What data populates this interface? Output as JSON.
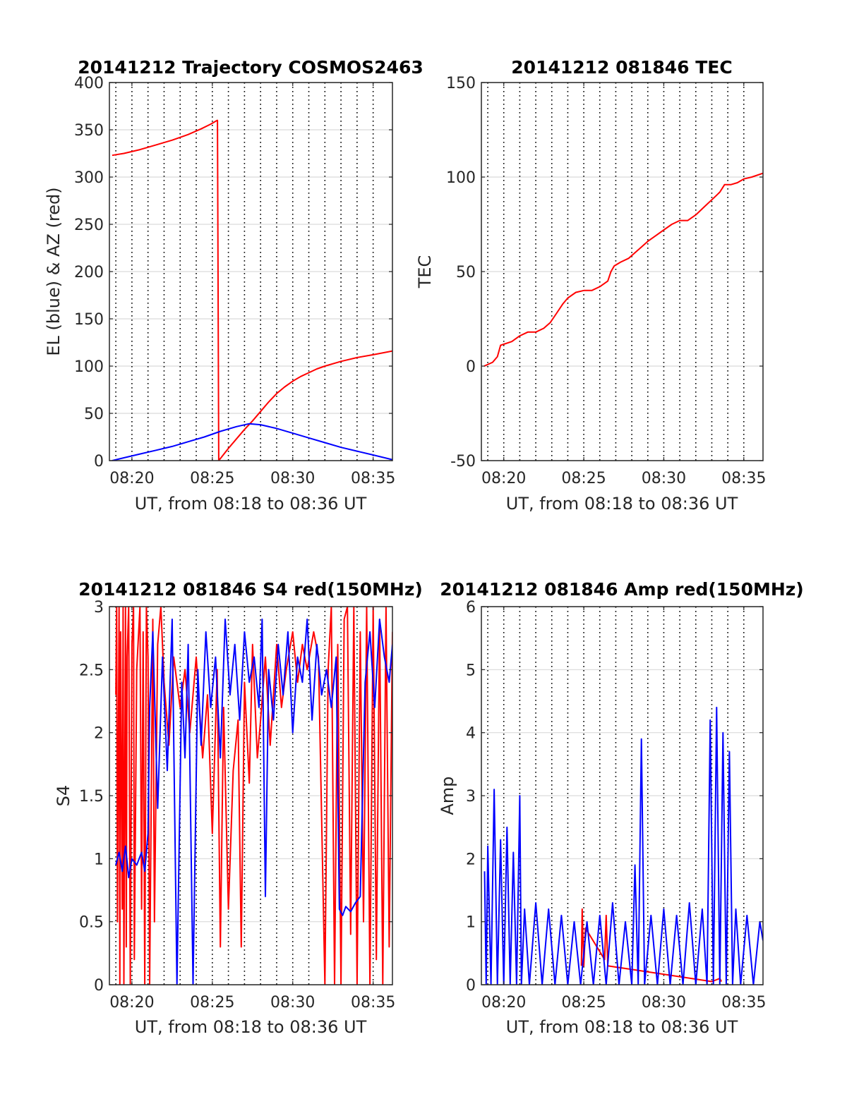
{
  "figure": {
    "line_colors": {
      "red": "#ff0000",
      "blue": "#0000ff"
    },
    "grid_color": "#d9d9d9"
  },
  "chart_data": [
    {
      "type": "line",
      "title": "20141212 Trajectory COSMOS2463",
      "xlabel": "UT, from 08:18 to 08:36 UT",
      "ylabel": "EL (blue) & AZ (red)",
      "xlim": [
        18.6,
        36.2
      ],
      "ylim": [
        0,
        400
      ],
      "yticks": [
        0,
        50,
        100,
        150,
        200,
        250,
        300,
        350,
        400
      ],
      "xticks": [
        20,
        25,
        30,
        35
      ],
      "xticklabels": [
        "08:20",
        "08:25",
        "08:30",
        "08:35"
      ],
      "vgrid_minutes": [
        19,
        20,
        21,
        22,
        23,
        24,
        25,
        26,
        27,
        28,
        29,
        30,
        31,
        32,
        33,
        34,
        35
      ],
      "grid": true,
      "series": [
        {
          "color": "#ff0000",
          "x": [
            18.77,
            19.5,
            20.5,
            21.5,
            22.5,
            23.5,
            24.3,
            24.9,
            25.3,
            25.32,
            25.4,
            26.0,
            26.5,
            27.0,
            27.5,
            28.0,
            28.5,
            29.0,
            29.5,
            30.0,
            30.5,
            31.0,
            31.5,
            32.0,
            33.0,
            34.0,
            35.0,
            36.2
          ],
          "y": [
            323,
            325,
            329,
            334,
            339,
            345,
            351,
            356,
            360,
            360,
            0,
            13,
            23,
            33,
            42,
            52,
            62,
            71,
            78,
            84,
            89,
            93,
            97,
            100,
            105,
            109,
            112,
            116
          ]
        },
        {
          "color": "#0000ff",
          "x": [
            18.77,
            19.5,
            20.5,
            21.5,
            22.5,
            23.5,
            24.5,
            25.5,
            26.5,
            27.3,
            28.0,
            29.0,
            30.0,
            31.0,
            32.0,
            33.0,
            34.0,
            35.0,
            36.2
          ],
          "y": [
            0,
            3,
            7,
            11,
            15,
            20,
            25,
            31,
            36,
            39,
            38,
            34,
            29,
            24,
            19,
            14,
            10,
            6,
            1
          ]
        }
      ]
    },
    {
      "type": "line",
      "title": "20141212 081846 TEC",
      "xlabel": "UT, from 08:18 to 08:36 UT",
      "ylabel": "TEC",
      "xlim": [
        18.6,
        36.2
      ],
      "ylim": [
        -50,
        150
      ],
      "yticks": [
        -50,
        0,
        50,
        100,
        150
      ],
      "xticks": [
        20,
        25,
        30,
        35
      ],
      "xticklabels": [
        "08:20",
        "08:25",
        "08:30",
        "08:35"
      ],
      "vgrid_minutes": [
        19,
        20,
        21,
        22,
        23,
        24,
        25,
        26,
        27,
        28,
        29,
        30,
        31,
        32,
        33,
        34,
        35
      ],
      "grid": true,
      "series": [
        {
          "color": "#ff0000",
          "x": [
            18.77,
            19.3,
            19.6,
            19.8,
            20.5,
            21.0,
            21.5,
            22.0,
            22.5,
            22.9,
            23.3,
            23.7,
            24.0,
            24.5,
            25.0,
            25.5,
            26.0,
            26.5,
            26.7,
            26.9,
            27.3,
            27.8,
            28.2,
            28.6,
            29.0,
            29.5,
            30.0,
            30.5,
            31.0,
            31.5,
            32.0,
            32.5,
            33.0,
            33.5,
            33.8,
            34.2,
            34.6,
            35.0,
            35.5,
            36.2
          ],
          "y": [
            0,
            2,
            5,
            11,
            13,
            16,
            18,
            18,
            20,
            23,
            28,
            33,
            36,
            39,
            40,
            40,
            42,
            45,
            50,
            53,
            55,
            57,
            60,
            63,
            66,
            69,
            72,
            75,
            77,
            77,
            80,
            84,
            88,
            92,
            96,
            96,
            97,
            99,
            100,
            102
          ]
        }
      ]
    },
    {
      "type": "line",
      "title": "20141212 081846 S4 red(150MHz)",
      "xlabel": "UT, from 08:18 to 08:36 UT",
      "ylabel": "S4",
      "xlim": [
        18.6,
        36.2
      ],
      "ylim": [
        0,
        3
      ],
      "yticks": [
        0,
        0.5,
        1,
        1.5,
        2,
        2.5,
        3
      ],
      "xticks": [
        20,
        25,
        30,
        35
      ],
      "xticklabels": [
        "08:20",
        "08:25",
        "08:30",
        "08:35"
      ],
      "vgrid_minutes": [
        19,
        20,
        21,
        22,
        23,
        24,
        25,
        26,
        27,
        28,
        29,
        30,
        31,
        32,
        33,
        34,
        35
      ],
      "grid": true,
      "series": [
        {
          "color": "#ff0000",
          "x": [
            19.0,
            19.05,
            19.1,
            19.2,
            19.25,
            19.3,
            19.4,
            19.45,
            19.5,
            19.6,
            19.65,
            19.7,
            19.8,
            19.9,
            20.0,
            20.1,
            20.15,
            20.3,
            20.5,
            20.6,
            20.7,
            20.8,
            20.9,
            21.0,
            21.1,
            21.3,
            21.4,
            21.6,
            21.8,
            22.0,
            22.3,
            22.6,
            23.0,
            23.3,
            23.6,
            24.0,
            24.4,
            24.7,
            25.0,
            25.3,
            25.5,
            25.7,
            26.0,
            26.3,
            26.6,
            26.8,
            27.0,
            27.3,
            27.5,
            27.8,
            28.0,
            28.3,
            28.6,
            28.8,
            29.0,
            29.3,
            29.6,
            30.0,
            30.3,
            30.6,
            30.9,
            31.3,
            31.6,
            32.0,
            32.2,
            32.4,
            32.6,
            32.8,
            33.0,
            33.2,
            33.4,
            33.6,
            33.8,
            34.0,
            34.2,
            34.4,
            34.6,
            34.8,
            35.0,
            35.2,
            35.4,
            35.6,
            35.8,
            36.0,
            36.2
          ],
          "y": [
            2.3,
            3.0,
            0.5,
            3.0,
            0,
            2.8,
            0.6,
            3.0,
            0,
            3.0,
            0.3,
            2.6,
            3.0,
            0,
            2.7,
            3.0,
            0.2,
            2.5,
            3.0,
            0.6,
            2.8,
            0,
            3.0,
            2.6,
            0,
            2.9,
            0.5,
            2.7,
            3.0,
            2.4,
            1.9,
            2.6,
            2.2,
            2.5,
            2.0,
            2.6,
            1.8,
            2.3,
            1.2,
            2.5,
            0.3,
            2.2,
            0.6,
            1.7,
            2.1,
            0.3,
            2.4,
            1.6,
            2.7,
            1.8,
            2.1,
            2.6,
            1.9,
            2.3,
            2.7,
            2.2,
            2.5,
            2.8,
            2.4,
            2.7,
            2.5,
            2.8,
            2.6,
            0,
            2.5,
            3.0,
            0,
            2.7,
            0,
            2.9,
            3.0,
            0.4,
            3.0,
            0,
            2.8,
            0.5,
            3.0,
            0,
            3.0,
            0.2,
            2.9,
            0,
            3.0,
            0.3,
            2.8
          ]
        },
        {
          "color": "#0000ff",
          "x": [
            19.0,
            19.2,
            19.4,
            19.6,
            19.8,
            20.0,
            20.3,
            20.6,
            20.8,
            21.0,
            21.1,
            21.3,
            21.6,
            21.9,
            22.2,
            22.5,
            22.8,
            23.1,
            23.3,
            23.5,
            23.8,
            24.1,
            24.3,
            24.6,
            24.9,
            25.2,
            25.5,
            25.8,
            26.1,
            26.4,
            26.7,
            27.0,
            27.3,
            27.6,
            27.9,
            28.1,
            28.3,
            28.5,
            28.8,
            29.1,
            29.4,
            29.7,
            30.0,
            30.3,
            30.6,
            30.9,
            31.2,
            31.5,
            31.8,
            32.1,
            32.4,
            32.7,
            32.9,
            33.1,
            33.3,
            33.6,
            33.9,
            34.2,
            34.5,
            34.8,
            35.1,
            35.4,
            35.7,
            36.0,
            36.2
          ],
          "y": [
            0.95,
            1.05,
            0.9,
            1.1,
            0.85,
            1.0,
            0.95,
            1.05,
            0.9,
            1.2,
            2.2,
            2.8,
            1.4,
            2.6,
            1.7,
            2.9,
            0,
            2.4,
            1.8,
            2.7,
            0,
            2.5,
            1.9,
            2.8,
            2.2,
            2.6,
            1.8,
            2.9,
            2.3,
            2.7,
            2.1,
            2.8,
            2.4,
            2.6,
            2.2,
            2.9,
            0.7,
            2.5,
            2.1,
            2.7,
            2.3,
            2.8,
            2.0,
            2.6,
            2.4,
            2.9,
            2.1,
            2.7,
            2.3,
            2.5,
            2.2,
            2.6,
            0.6,
            0.55,
            0.62,
            0.58,
            0.65,
            0.7,
            2.4,
            2.8,
            2.2,
            2.9,
            2.6,
            2.4,
            2.7
          ]
        }
      ]
    },
    {
      "type": "line",
      "title": "20141212 081846 Amp red(150MHz)",
      "xlabel": "UT, from 08:18 to 08:36 UT",
      "ylabel": "Amp",
      "xlim": [
        18.6,
        36.2
      ],
      "ylim": [
        0,
        6
      ],
      "yticks": [
        0,
        1,
        2,
        3,
        4,
        5,
        6
      ],
      "xticks": [
        20,
        25,
        30,
        35
      ],
      "xticklabels": [
        "08:20",
        "08:25",
        "08:30",
        "08:35"
      ],
      "vgrid_minutes": [
        19,
        20,
        21,
        22,
        23,
        24,
        25,
        26,
        27,
        28,
        29,
        30,
        31,
        32,
        33,
        34,
        35
      ],
      "grid": true,
      "series": [
        {
          "color": "#ff0000",
          "x": [
            24.85,
            24.9,
            25.0,
            25.1,
            26.3,
            26.4,
            26.5,
            33.0,
            33.5,
            33.6
          ],
          "y": [
            0.3,
            1.2,
            0.3,
            0.9,
            0.4,
            1.1,
            0.3,
            0.05,
            0.1,
            0.05
          ]
        },
        {
          "color": "#0000ff",
          "x": [
            18.8,
            18.9,
            19.0,
            19.2,
            19.4,
            19.6,
            19.8,
            20.0,
            20.2,
            20.4,
            20.6,
            20.8,
            21.0,
            21.1,
            21.3,
            21.6,
            22.0,
            22.4,
            22.8,
            23.2,
            23.6,
            24.0,
            24.4,
            24.8,
            25.2,
            25.6,
            26.0,
            26.4,
            26.8,
            27.2,
            27.6,
            28.0,
            28.2,
            28.4,
            28.6,
            28.8,
            29.2,
            29.6,
            30.0,
            30.4,
            30.8,
            31.2,
            31.6,
            32.0,
            32.4,
            32.7,
            32.9,
            33.1,
            33.3,
            33.5,
            33.7,
            33.9,
            34.1,
            34.3,
            34.5,
            34.8,
            35.2,
            35.6,
            36.0,
            36.2
          ],
          "y": [
            1.8,
            0,
            2.2,
            0,
            3.1,
            0,
            2.3,
            0,
            2.5,
            0,
            2.1,
            0,
            3.0,
            0,
            1.2,
            0,
            1.3,
            0,
            1.2,
            0,
            1.1,
            0,
            1.0,
            0,
            1.0,
            0,
            1.1,
            0,
            1.3,
            0,
            1.0,
            0,
            1.9,
            0,
            3.9,
            0,
            1.1,
            0,
            1.2,
            0,
            1.1,
            0,
            1.3,
            0,
            1.2,
            0,
            4.2,
            0,
            4.4,
            0,
            4.0,
            0,
            3.7,
            0,
            1.2,
            0,
            1.1,
            0,
            1.0,
            0.7
          ]
        }
      ]
    }
  ]
}
